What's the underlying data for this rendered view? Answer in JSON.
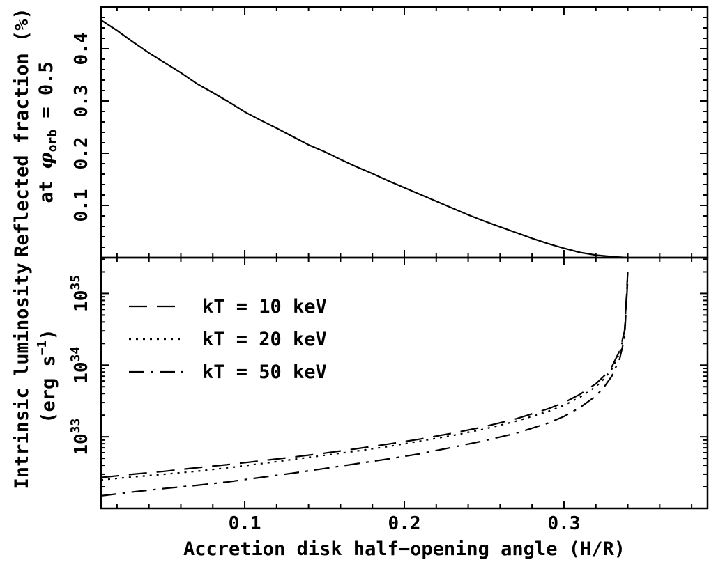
{
  "chart_data": [
    {
      "type": "line",
      "panel": "top",
      "xlabel": "",
      "ylabel": "Reflected fraction (%)",
      "ylabel_line2_prefix": "at ",
      "ylabel_line2_symbol": "φ",
      "ylabel_line2_subscript": "orb",
      "ylabel_line2_suffix": " = 0.5",
      "xlim": [
        0.01,
        0.39
      ],
      "ylim": [
        0.0,
        0.48
      ],
      "yscale": "linear",
      "yticks": [
        0.1,
        0.2,
        0.3,
        0.4
      ],
      "ytick_labels": [
        "0.1",
        "0.2",
        "0.3",
        "0.4"
      ],
      "series": [
        {
          "x": [
            0.01,
            0.02,
            0.03,
            0.04,
            0.05,
            0.06,
            0.07,
            0.08,
            0.09,
            0.1,
            0.11,
            0.12,
            0.13,
            0.14,
            0.15,
            0.16,
            0.17,
            0.18,
            0.19,
            0.2,
            0.21,
            0.22,
            0.23,
            0.24,
            0.25,
            0.26,
            0.27,
            0.28,
            0.29,
            0.3,
            0.31,
            0.32,
            0.33,
            0.34
          ],
          "y": [
            0.455,
            0.435,
            0.413,
            0.392,
            0.373,
            0.354,
            0.333,
            0.316,
            0.298,
            0.279,
            0.263,
            0.248,
            0.232,
            0.216,
            0.203,
            0.188,
            0.174,
            0.161,
            0.147,
            0.134,
            0.121,
            0.108,
            0.095,
            0.082,
            0.07,
            0.059,
            0.048,
            0.037,
            0.027,
            0.018,
            0.01,
            0.005,
            0.002,
            0.0
          ]
        }
      ]
    },
    {
      "type": "line",
      "panel": "bottom",
      "xlabel": "Accretion disk half−opening angle (H/R)",
      "ylabel_line1": "Intrinsic luminosity",
      "ylabel_line2_prefix": "(erg s",
      "ylabel_line2_sup": "−1",
      "ylabel_line2_suffix": ")",
      "xlim": [
        0.01,
        0.39
      ],
      "ylim_log10": [
        32.0,
        35.5
      ],
      "yscale": "log",
      "xticks": [
        0.1,
        0.2,
        0.3
      ],
      "xtick_labels": [
        "0.1",
        "0.2",
        "0.3"
      ],
      "yticks_log10": [
        33,
        34,
        35
      ],
      "ytick_base": "10",
      "ytick_exponents": [
        "33",
        "34",
        "35"
      ],
      "series": [
        {
          "name": "kT = 10 keV",
          "dash": "dashed",
          "x": [
            0.01,
            0.03,
            0.05,
            0.07,
            0.09,
            0.11,
            0.13,
            0.15,
            0.17,
            0.19,
            0.21,
            0.23,
            0.25,
            0.27,
            0.29,
            0.3,
            0.31,
            0.32,
            0.325,
            0.33,
            0.335,
            0.338,
            0.34
          ],
          "y": [
            2.7e+32,
            3e+32,
            3.3e+32,
            3.7e+32,
            4.1e+32,
            4.6e+32,
            5.2e+32,
            5.9e+32,
            6.8e+32,
            7.9e+32,
            9.3e+32,
            1.12e+33,
            1.38e+33,
            1.78e+33,
            2.45e+33,
            3e+33,
            3.9e+33,
            5.5e+33,
            7e+33,
            9.5e+33,
            1.6e+34,
            3e+34,
            2e+35
          ]
        },
        {
          "name": "kT = 20 keV",
          "dash": "dotted",
          "x": [
            0.01,
            0.03,
            0.05,
            0.07,
            0.09,
            0.11,
            0.13,
            0.15,
            0.17,
            0.19,
            0.21,
            0.23,
            0.25,
            0.27,
            0.29,
            0.3,
            0.31,
            0.32,
            0.325,
            0.33,
            0.335,
            0.338,
            0.34
          ],
          "y": [
            2.5e+32,
            2.75e+32,
            3e+32,
            3.3e+32,
            3.7e+32,
            4.2e+32,
            4.8e+32,
            5.5e+32,
            6.3e+32,
            7.3e+32,
            8.7e+32,
            1.04e+33,
            1.28e+33,
            1.65e+33,
            2.25e+33,
            2.75e+33,
            3.55e+33,
            5e+33,
            6.4e+33,
            8.8e+33,
            1.5e+34,
            2.8e+34,
            1.9e+35
          ]
        },
        {
          "name": "kT = 50 keV",
          "dash": "dashdot",
          "x": [
            0.01,
            0.03,
            0.05,
            0.07,
            0.09,
            0.11,
            0.13,
            0.15,
            0.17,
            0.19,
            0.21,
            0.23,
            0.25,
            0.27,
            0.29,
            0.3,
            0.31,
            0.32,
            0.325,
            0.33,
            0.335,
            0.338,
            0.34
          ],
          "y": [
            1.5e+32,
            1.7e+32,
            1.9e+32,
            2.1e+32,
            2.35e+32,
            2.7e+32,
            3.1e+32,
            3.6e+32,
            4.2e+32,
            4.9e+32,
            5.8e+32,
            7.1e+32,
            8.8e+32,
            1.12e+33,
            1.55e+33,
            1.92e+33,
            2.55e+33,
            3.7e+33,
            4.9e+33,
            7e+33,
            1.25e+34,
            2.4e+34,
            1.6e+35
          ]
        }
      ],
      "legend_placement": "top-left"
    }
  ]
}
